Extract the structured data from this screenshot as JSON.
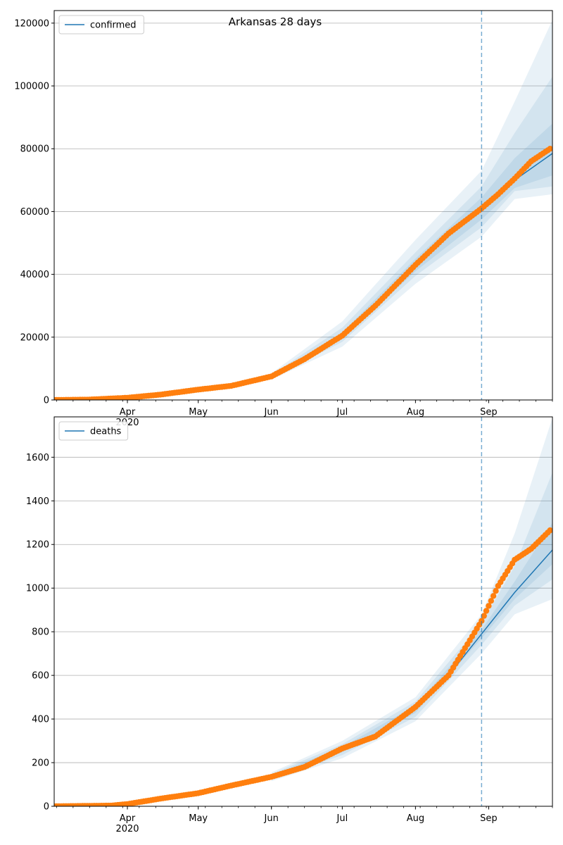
{
  "chart_data": [
    {
      "type": "line",
      "title": "Arkansas 28 days",
      "legend": [
        "confirmed"
      ],
      "legend_position": "top-left",
      "x_range": [
        "2020-03-01",
        "2020-09-28"
      ],
      "x_tick_labels": [
        "Apr\n2020",
        "May",
        "Jun",
        "Jul",
        "Aug",
        "Sep"
      ],
      "ylim": [
        0,
        124000
      ],
      "y_ticks": [
        0,
        20000,
        40000,
        60000,
        80000,
        100000,
        120000
      ],
      "grid": "y",
      "forecast_start": "2020-08-29",
      "colors": {
        "model": "#1f77b4",
        "observed": "#ff7f0e",
        "band": "#1f77b4",
        "marker_line": "#1f77b4"
      },
      "observed": {
        "x": [
          "2020-03-01",
          "2020-03-15",
          "2020-04-01",
          "2020-04-15",
          "2020-05-01",
          "2020-05-15",
          "2020-06-01",
          "2020-06-15",
          "2020-07-01",
          "2020-07-15",
          "2020-08-01",
          "2020-08-15",
          "2020-08-29",
          "2020-09-05",
          "2020-09-12",
          "2020-09-19",
          "2020-09-27"
        ],
        "y": [
          0,
          100,
          700,
          1700,
          3300,
          4500,
          7500,
          13000,
          20500,
          30000,
          43000,
          53000,
          61000,
          65500,
          70500,
          76000,
          80000
        ]
      },
      "model": {
        "x": [
          "2020-03-01",
          "2020-04-01",
          "2020-05-01",
          "2020-06-01",
          "2020-06-15",
          "2020-07-01",
          "2020-07-15",
          "2020-08-01",
          "2020-08-15",
          "2020-08-29",
          "2020-09-12",
          "2020-09-28"
        ],
        "y": [
          0,
          700,
          3300,
          7500,
          13000,
          20500,
          30000,
          43000,
          53000,
          61000,
          70000,
          78500
        ]
      },
      "bands": [
        {
          "x": [
            "2020-06-01",
            "2020-07-01",
            "2020-08-01",
            "2020-08-29",
            "2020-09-12",
            "2020-09-28"
          ],
          "lower": [
            6500,
            17000,
            37000,
            52000,
            64000,
            65500
          ],
          "upper": [
            8500,
            25000,
            51000,
            73000,
            95000,
            121000
          ]
        },
        {
          "x": [
            "2020-06-01",
            "2020-07-01",
            "2020-08-01",
            "2020-08-29",
            "2020-09-12",
            "2020-09-28"
          ],
          "lower": [
            7000,
            18500,
            39500,
            55000,
            66500,
            68000
          ],
          "upper": [
            8000,
            23000,
            47000,
            68000,
            85000,
            103000
          ]
        },
        {
          "x": [
            "2020-06-01",
            "2020-07-01",
            "2020-08-01",
            "2020-08-29",
            "2020-09-12",
            "2020-09-28"
          ],
          "lower": [
            7300,
            19500,
            41000,
            57500,
            67500,
            71500
          ],
          "upper": [
            7700,
            21500,
            45000,
            64500,
            77000,
            88000
          ]
        }
      ]
    },
    {
      "type": "line",
      "title": "",
      "legend": [
        "deaths"
      ],
      "legend_position": "top-left",
      "x_range": [
        "2020-03-01",
        "2020-09-28"
      ],
      "x_tick_labels": [
        "Apr\n2020",
        "May",
        "Jun",
        "Jul",
        "Aug",
        "Sep"
      ],
      "ylim": [
        0,
        1785
      ],
      "y_ticks": [
        0,
        200,
        400,
        600,
        800,
        1000,
        1200,
        1400,
        1600
      ],
      "grid": "y",
      "forecast_start": "2020-08-29",
      "colors": {
        "model": "#1f77b4",
        "observed": "#ff7f0e",
        "band": "#1f77b4",
        "marker_line": "#1f77b4"
      },
      "observed": {
        "x": [
          "2020-03-01",
          "2020-03-25",
          "2020-04-01",
          "2020-04-15",
          "2020-05-01",
          "2020-05-15",
          "2020-06-01",
          "2020-06-15",
          "2020-07-01",
          "2020-07-15",
          "2020-08-01",
          "2020-08-15",
          "2020-08-29",
          "2020-09-05",
          "2020-09-12",
          "2020-09-19",
          "2020-09-27"
        ],
        "y": [
          0,
          3,
          10,
          35,
          60,
          95,
          135,
          180,
          265,
          320,
          455,
          600,
          850,
          1010,
          1130,
          1180,
          1265
        ]
      },
      "model": {
        "x": [
          "2020-03-01",
          "2020-04-01",
          "2020-05-01",
          "2020-06-01",
          "2020-06-15",
          "2020-07-01",
          "2020-07-15",
          "2020-08-01",
          "2020-08-15",
          "2020-08-29",
          "2020-09-12",
          "2020-09-28"
        ],
        "y": [
          0,
          10,
          60,
          135,
          180,
          260,
          320,
          445,
          600,
          790,
          980,
          1175
        ]
      },
      "bands": [
        {
          "x": [
            "2020-06-01",
            "2020-07-01",
            "2020-08-01",
            "2020-08-29",
            "2020-09-12",
            "2020-09-28"
          ],
          "lower": [
            115,
            220,
            390,
            700,
            880,
            950
          ],
          "upper": [
            155,
            300,
            500,
            880,
            1250,
            1780
          ]
        },
        {
          "x": [
            "2020-06-01",
            "2020-07-01",
            "2020-08-01",
            "2020-08-29",
            "2020-09-12",
            "2020-09-28"
          ],
          "lower": [
            122,
            235,
            410,
            740,
            920,
            1040
          ],
          "upper": [
            148,
            285,
            480,
            840,
            1100,
            1530
          ]
        },
        {
          "x": [
            "2020-06-01",
            "2020-07-01",
            "2020-08-01",
            "2020-08-29",
            "2020-09-12",
            "2020-09-28"
          ],
          "lower": [
            128,
            248,
            428,
            770,
            950,
            1110
          ],
          "upper": [
            142,
            272,
            462,
            810,
            1030,
            1300
          ]
        }
      ]
    }
  ]
}
